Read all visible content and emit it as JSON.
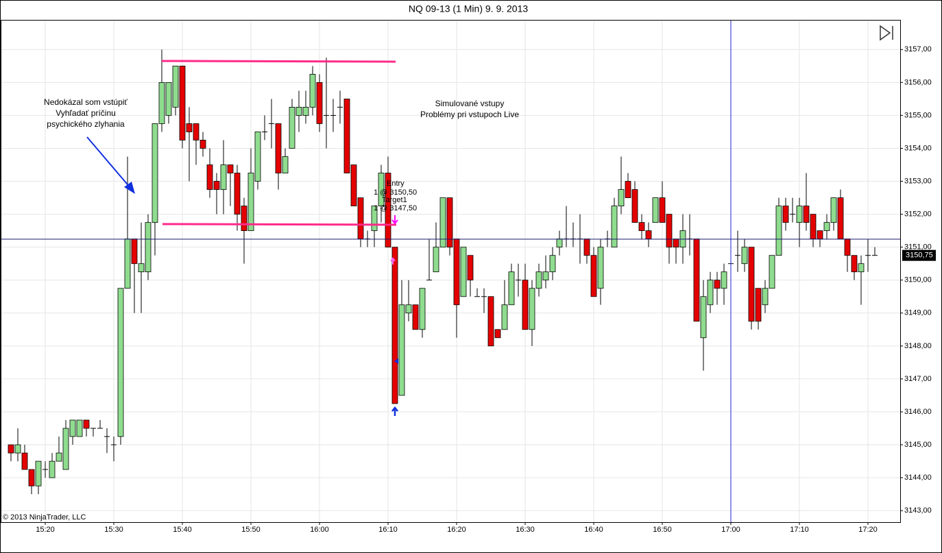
{
  "chart_data": {
    "type": "candlestick",
    "title": "NQ 09-13 (1 Min)  9. 9. 2013",
    "copyright": "© 2013 NinjaTrader, LLC",
    "annotations": [
      "Nedokázal som vstúpiť",
      "Vyhľadať príčinu",
      "psychického zlyhania",
      "Simulované vstupy",
      "Problémy pri vstupoch Live",
      "Entry",
      "1 @ 3150,50",
      "Target1",
      "1 @ 3147,50"
    ],
    "last_price": {
      "value": 3150.75,
      "label": "3150,75"
    },
    "up_color": "#8fdc8f",
    "down_color": "#e40000",
    "grid": true,
    "ylim": [
      3142.65,
      3157.88
    ],
    "yticks": [
      {
        "value": 3143,
        "label": "3143,00"
      },
      {
        "value": 3144,
        "label": "3144,00"
      },
      {
        "value": 3145,
        "label": "3145,00"
      },
      {
        "value": 3146,
        "label": "3146,00"
      },
      {
        "value": 3147,
        "label": "3147,00"
      },
      {
        "value": 3148,
        "label": "3148,00"
      },
      {
        "value": 3149,
        "label": "3149,00"
      },
      {
        "value": 3150,
        "label": "3150,00"
      },
      {
        "value": 3151,
        "label": "3151,00"
      },
      {
        "value": 3152,
        "label": "3152,00"
      },
      {
        "value": 3153,
        "label": "3153,00"
      },
      {
        "value": 3154,
        "label": "3154,00"
      },
      {
        "value": 3155,
        "label": "3155,00"
      },
      {
        "value": 3156,
        "label": "3156,00"
      },
      {
        "value": 3157,
        "label": "3157,00"
      }
    ],
    "xticks": [
      "15:20",
      "15:30",
      "15:40",
      "15:50",
      "16:00",
      "16:10",
      "16:20",
      "16:30",
      "16:40",
      "16:50",
      "17:00",
      "17:10",
      "17:20"
    ],
    "x": [
      "15:15",
      "15:16",
      "15:17",
      "15:18",
      "15:19",
      "15:20",
      "15:21",
      "15:22",
      "15:23",
      "15:24",
      "15:25",
      "15:26",
      "15:27",
      "15:28",
      "15:29",
      "15:30",
      "15:31",
      "15:32",
      "15:33",
      "15:34",
      "15:35",
      "15:36",
      "15:37",
      "15:38",
      "15:39",
      "15:40",
      "15:41",
      "15:42",
      "15:43",
      "15:44",
      "15:45",
      "15:46",
      "15:47",
      "15:48",
      "15:49",
      "15:50",
      "15:51",
      "15:52",
      "15:53",
      "15:54",
      "15:55",
      "15:56",
      "15:57",
      "15:58",
      "15:59",
      "16:00",
      "16:01",
      "16:02",
      "16:03",
      "16:04",
      "16:05",
      "16:06",
      "16:07",
      "16:08",
      "16:09",
      "16:10",
      "16:11",
      "16:12",
      "16:13",
      "16:14",
      "16:15",
      "16:16",
      "16:17",
      "16:18",
      "16:19",
      "16:20",
      "16:21",
      "16:22",
      "16:23",
      "16:24",
      "16:25",
      "16:26",
      "16:27",
      "16:28",
      "16:29",
      "16:30",
      "16:31",
      "16:32",
      "16:33",
      "16:34",
      "16:35",
      "16:36",
      "16:37",
      "16:38",
      "16:39",
      "16:40",
      "16:41",
      "16:42",
      "16:43",
      "16:44",
      "16:45",
      "16:46",
      "16:47",
      "16:48",
      "16:49",
      "16:50",
      "16:51",
      "16:52",
      "16:53",
      "16:54",
      "16:55",
      "16:56",
      "16:57",
      "16:58",
      "16:59",
      "17:00",
      "17:01",
      "17:02",
      "17:03",
      "17:04",
      "17:05",
      "17:06",
      "17:07",
      "17:08",
      "17:09",
      "17:10",
      "17:11",
      "17:12",
      "17:13",
      "17:14",
      "17:15",
      "17:16",
      "17:17",
      "17:18",
      "17:19",
      "17:20",
      "17:21"
    ],
    "open": [
      3145,
      3144.75,
      3144.75,
      3144.25,
      3143.75,
      3144.25,
      3144,
      3144.5,
      3144.25,
      3145.25,
      3145.25,
      3145.75,
      3145.5,
      3145.5,
      3145.25,
      3145,
      3145.25,
      3149.75,
      3151.25,
      3150.25,
      3150.25,
      3151.75,
      3154.75,
      3155,
      3155.25,
      3156.5,
      3154.75,
      3154.75,
      3154.25,
      3153.5,
      3153,
      3152.75,
      3153.5,
      3153.25,
      3152.25,
      3151.5,
      3153,
      3154.5,
      3154.75,
      3154.75,
      3153.25,
      3154,
      3155,
      3155,
      3155.25,
      3156,
      3155,
      3155,
      3155.25,
      3155.5,
      3153.5,
      3152.5,
      3151.25,
      3151.5,
      3152.25,
      3153.25,
      3151,
      3146.5,
      3149,
      3149.25,
      3148.5,
      3150,
      3150.25,
      3151,
      3152.5,
      3151.25,
      3149.5,
      3150.75,
      3149.5,
      3149.5,
      3149.5,
      3148.5,
      3148.5,
      3149.25,
      3150,
      3150,
      3148.5,
      3149.75,
      3150,
      3150.25,
      3151,
      3151.25,
      3151.25,
      3151.25,
      3151.25,
      3150.75,
      3149.75,
      3151.25,
      3151,
      3152.25,
      3153,
      3152.75,
      3151.75,
      3151.5,
      3151.75,
      3152.5,
      3152,
      3151.25,
      3151,
      3151.25,
      3151.25,
      3148.25,
      3149.25,
      3150,
      3149.75,
      3150.5,
      3150.75,
      3150.5,
      3151,
      3149.75,
      3149.25,
      3149.75,
      3150.75,
      3152.25,
      3152,
      3151.75,
      3152.25,
      3152,
      3151.5,
      3151.5,
      3151.75,
      3152.5,
      3151.25,
      3150.75,
      3150.25,
      3150.75,
      3150.75
    ],
    "high": [
      3145,
      3145.5,
      3145,
      3144.25,
      3144.5,
      3144.5,
      3144.75,
      3145.25,
      3145.75,
      3145.75,
      3145.75,
      3145.75,
      3145.5,
      3145.75,
      3145.5,
      3145.25,
      3149.75,
      3153.75,
      3151.25,
      3151.75,
      3152,
      3154.75,
      3157,
      3156,
      3156.5,
      3156.5,
      3155.25,
      3154.75,
      3154.5,
      3154,
      3153.25,
      3154.25,
      3153.5,
      3153.5,
      3152.5,
      3154,
      3154.5,
      3155,
      3155.5,
      3154.75,
      3154,
      3155.5,
      3155.75,
      3155.75,
      3156.5,
      3156.25,
      3156.75,
      3155.5,
      3155.75,
      3155.5,
      3153.5,
      3152.5,
      3151.5,
      3152.25,
      3153.5,
      3153.75,
      3151,
      3150,
      3150,
      3149.25,
      3149.75,
      3151.25,
      3151.75,
      3152.5,
      3152.5,
      3151.25,
      3151,
      3150.75,
      3149.75,
      3149.75,
      3149.5,
      3148.5,
      3150,
      3150.5,
      3150.5,
      3150.5,
      3150,
      3150.5,
      3150.75,
      3151,
      3151.5,
      3152.25,
      3151.75,
      3152,
      3151.25,
      3151,
      3151.25,
      3151.5,
      3152.5,
      3153.75,
      3153.25,
      3153,
      3152,
      3151.75,
      3152.5,
      3153,
      3152,
      3151.25,
      3152,
      3152,
      3151.25,
      3150,
      3150.25,
      3150.25,
      3150.5,
      3151,
      3151.5,
      3151.25,
      3151,
      3149.75,
      3150,
      3150.75,
      3152.5,
      3152.5,
      3152.5,
      3152.5,
      3153.25,
      3152,
      3151.5,
      3152,
      3152.5,
      3152.75,
      3151.25,
      3150.75,
      3150.75,
      3151.25,
      3151
    ],
    "low": [
      3144.5,
      3144.5,
      3144.25,
      3143.5,
      3143.5,
      3144,
      3144,
      3144.5,
      3144.25,
      3145,
      3145.25,
      3145.25,
      3145.25,
      3145.5,
      3144.75,
      3144.5,
      3145,
      3149.75,
      3149,
      3149,
      3150,
      3150.75,
      3154.5,
      3154.75,
      3155,
      3154,
      3153,
      3153.5,
      3153.75,
      3152.5,
      3152,
      3152,
      3152.25,
      3151.5,
      3150.5,
      3151.5,
      3152.75,
      3154.25,
      3154,
      3152.75,
      3153.25,
      3154,
      3154.5,
      3154.75,
      3155,
      3154.5,
      3154,
      3154.5,
      3154.75,
      3153.25,
      3152.25,
      3151,
      3151,
      3151,
      3151.75,
      3151,
      3146.25,
      3146.5,
      3148.75,
      3148.5,
      3148.25,
      3150,
      3150.25,
      3151,
      3150.75,
      3148.25,
      3149.5,
      3149.5,
      3149.5,
      3149,
      3148,
      3148.25,
      3148.5,
      3149.25,
      3149.5,
      3148.5,
      3148,
      3149.5,
      3149.75,
      3150,
      3150.75,
      3151,
      3151,
      3150.5,
      3150.5,
      3149.5,
      3149.25,
      3151,
      3151,
      3152,
      3152.5,
      3151.75,
      3151.25,
      3151,
      3151.75,
      3151.75,
      3150.5,
      3150.5,
      3150.5,
      3150.75,
      3148.75,
      3147.25,
      3149,
      3149.25,
      3149.25,
      3150,
      3150.25,
      3150.25,
      3148.5,
      3148.5,
      3149,
      3149.75,
      3150.75,
      3151.5,
      3151.75,
      3151,
      3151.5,
      3151,
      3151,
      3151.25,
      3151.5,
      3151.25,
      3150.25,
      3150,
      3149.25,
      3150.25,
      3150.75
    ],
    "close": [
      3144.75,
      3145,
      3144.25,
      3143.75,
      3144.5,
      3144.25,
      3144.5,
      3144.75,
      3145.5,
      3145.75,
      3145.75,
      3145.5,
      3145.5,
      3145.5,
      3145.25,
      3145,
      3149.75,
      3151.25,
      3150.5,
      3150.5,
      3151.75,
      3154.75,
      3156,
      3156,
      3156.5,
      3154.25,
      3154.5,
      3154.25,
      3154,
      3152.75,
      3152.75,
      3153.5,
      3153.25,
      3152,
      3151.5,
      3153.25,
      3154.5,
      3154.5,
      3154.75,
      3153.25,
      3153.75,
      3155.25,
      3155.25,
      3155.25,
      3156.25,
      3154.75,
      3155,
      3155,
      3155.25,
      3153.25,
      3152.25,
      3151.25,
      3151.25,
      3152.25,
      3153.25,
      3151,
      3146.25,
      3149.25,
      3149.25,
      3148.5,
      3149.75,
      3150,
      3151,
      3152.5,
      3151,
      3149.25,
      3151,
      3150,
      3149.5,
      3149.5,
      3148,
      3148.25,
      3149.25,
      3150.25,
      3150,
      3148.5,
      3149.75,
      3150.25,
      3150.25,
      3150.75,
      3151.25,
      3151.25,
      3151.25,
      3151.25,
      3150.75,
      3149.5,
      3151,
      3151.25,
      3152.25,
      3152.75,
      3152.5,
      3151.75,
      3151.5,
      3151.25,
      3152.5,
      3151.75,
      3151,
      3151,
      3151.5,
      3151.25,
      3148.75,
      3149.5,
      3150,
      3149.75,
      3150.25,
      3150.5,
      3150.75,
      3151,
      3148.75,
      3148.75,
      3149.75,
      3150.75,
      3152.25,
      3151.75,
      3152,
      3152.25,
      3151.75,
      3151.25,
      3151.25,
      3151.75,
      3152.5,
      3151.25,
      3150.75,
      3150.25,
      3150.5,
      3150.75,
      3150.75
    ]
  }
}
